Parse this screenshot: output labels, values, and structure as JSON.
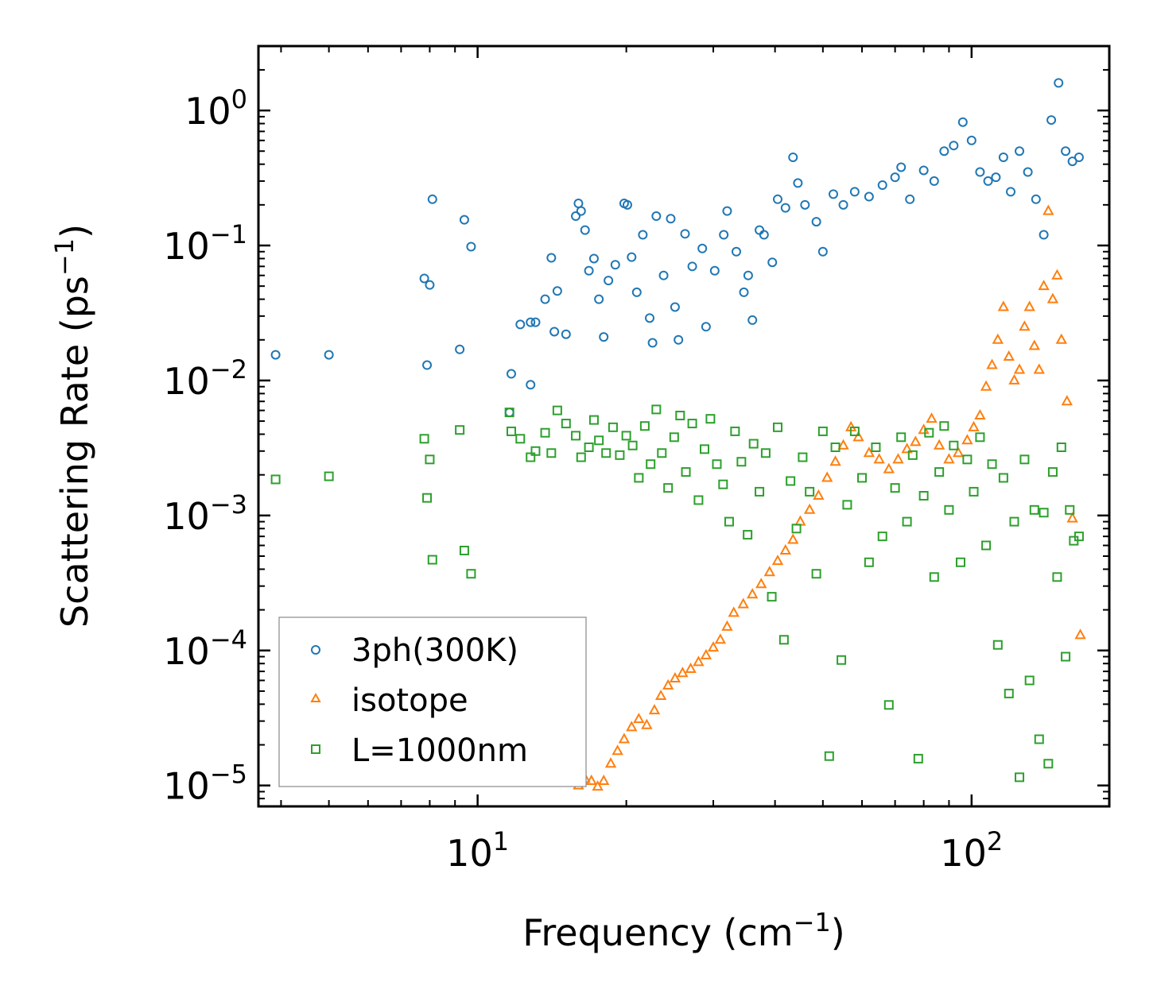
{
  "chart_data": {
    "type": "scatter",
    "title": "",
    "xlabel": "Frequency (cm",
    "xlabel_sup": "−1",
    "xlabel_end": ")",
    "ylabel": "Scattering Rate (ps",
    "ylabel_sup": "−1",
    "ylabel_end": ")",
    "xscale": "log",
    "yscale": "log",
    "xlim": [
      3.6,
      190
    ],
    "ylim": [
      7e-06,
      3
    ],
    "xticks": [
      {
        "value": 10,
        "base": "10",
        "exp": "1"
      },
      {
        "value": 100,
        "base": "10",
        "exp": "2"
      }
    ],
    "yticks": [
      {
        "value": 1,
        "base": "10",
        "exp": "0"
      },
      {
        "value": 0.1,
        "base": "10",
        "exp": "−1"
      },
      {
        "value": 0.01,
        "base": "10",
        "exp": "−2"
      },
      {
        "value": 0.001,
        "base": "10",
        "exp": "−3"
      },
      {
        "value": 0.0001,
        "base": "10",
        "exp": "−4"
      },
      {
        "value": 1e-05,
        "base": "10",
        "exp": "−5"
      }
    ],
    "legend_position": "lower-left",
    "series": [
      {
        "name": "3ph(300K)",
        "marker": "circle",
        "color": "#1f77b4",
        "points": [
          [
            3.9,
            0.0155
          ],
          [
            5.0,
            0.0155
          ],
          [
            7.8,
            0.057
          ],
          [
            7.9,
            0.013
          ],
          [
            8.0,
            0.051
          ],
          [
            8.1,
            0.22
          ],
          [
            9.2,
            0.017
          ],
          [
            9.4,
            0.155
          ],
          [
            9.7,
            0.098
          ],
          [
            11.6,
            0.0058
          ],
          [
            11.7,
            0.0112
          ],
          [
            12.2,
            0.026
          ],
          [
            12.8,
            0.0093
          ],
          [
            12.8,
            0.027
          ],
          [
            13.1,
            0.027
          ],
          [
            13.7,
            0.04
          ],
          [
            14.1,
            0.081
          ],
          [
            14.3,
            0.023
          ],
          [
            14.5,
            0.046
          ],
          [
            15.1,
            0.022
          ],
          [
            15.8,
            0.165
          ],
          [
            16.0,
            0.205
          ],
          [
            16.2,
            0.18
          ],
          [
            16.5,
            0.13
          ],
          [
            16.8,
            0.065
          ],
          [
            17.2,
            0.08
          ],
          [
            17.6,
            0.04
          ],
          [
            18.0,
            0.021
          ],
          [
            18.4,
            0.055
          ],
          [
            19.0,
            0.072
          ],
          [
            19.8,
            0.205
          ],
          [
            20.1,
            0.2
          ],
          [
            20.5,
            0.082
          ],
          [
            21.0,
            0.045
          ],
          [
            21.6,
            0.12
          ],
          [
            22.3,
            0.029
          ],
          [
            22.6,
            0.019
          ],
          [
            23.0,
            0.165
          ],
          [
            23.8,
            0.06
          ],
          [
            24.6,
            0.158
          ],
          [
            25.1,
            0.035
          ],
          [
            25.5,
            0.02
          ],
          [
            26.3,
            0.122
          ],
          [
            27.2,
            0.07
          ],
          [
            28.5,
            0.095
          ],
          [
            29.0,
            0.025
          ],
          [
            30.2,
            0.065
          ],
          [
            31.5,
            0.12
          ],
          [
            32.0,
            0.18
          ],
          [
            33.4,
            0.09
          ],
          [
            34.6,
            0.045
          ],
          [
            35.3,
            0.06
          ],
          [
            36.0,
            0.028
          ],
          [
            37.2,
            0.13
          ],
          [
            38.0,
            0.12
          ],
          [
            39.5,
            0.075
          ],
          [
            40.5,
            0.22
          ],
          [
            42.0,
            0.19
          ],
          [
            43.5,
            0.45
          ],
          [
            44.5,
            0.29
          ],
          [
            46.0,
            0.2
          ],
          [
            48.5,
            0.15
          ],
          [
            50.0,
            0.09
          ],
          [
            52.5,
            0.24
          ],
          [
            55.0,
            0.2
          ],
          [
            58.0,
            0.25
          ],
          [
            62.0,
            0.23
          ],
          [
            66.0,
            0.28
          ],
          [
            70.0,
            0.32
          ],
          [
            72.0,
            0.38
          ],
          [
            75.0,
            0.22
          ],
          [
            80.0,
            0.36
          ],
          [
            84.0,
            0.3
          ],
          [
            88.0,
            0.5
          ],
          [
            92.0,
            0.55
          ],
          [
            96.0,
            0.82
          ],
          [
            100.0,
            0.6
          ],
          [
            104.0,
            0.35
          ],
          [
            108.0,
            0.3
          ],
          [
            112.0,
            0.32
          ],
          [
            116.0,
            0.45
          ],
          [
            120.0,
            0.25
          ],
          [
            125.0,
            0.5
          ],
          [
            130.0,
            0.35
          ],
          [
            135.0,
            0.22
          ],
          [
            140.0,
            0.12
          ],
          [
            145.0,
            0.85
          ],
          [
            150.0,
            1.6
          ],
          [
            155.0,
            0.5
          ],
          [
            160.0,
            0.42
          ],
          [
            165.0,
            0.45
          ]
        ]
      },
      {
        "name": "isotope",
        "marker": "triangle",
        "color": "#ff7f0e",
        "points": [
          [
            16.0,
            1e-05
          ],
          [
            16.5,
            1.12e-05
          ],
          [
            17.0,
            1.08e-05
          ],
          [
            17.5,
            9.8e-06
          ],
          [
            18.0,
            1.08e-05
          ],
          [
            18.6,
            1.45e-05
          ],
          [
            19.2,
            1.8e-05
          ],
          [
            19.8,
            2.2e-05
          ],
          [
            20.5,
            2.7e-05
          ],
          [
            21.2,
            3.1e-05
          ],
          [
            22.0,
            2.8e-05
          ],
          [
            22.8,
            3.6e-05
          ],
          [
            23.5,
            4.6e-05
          ],
          [
            24.3,
            5.5e-05
          ],
          [
            25.1,
            6.2e-05
          ],
          [
            26.0,
            6.8e-05
          ],
          [
            27.0,
            7.3e-05
          ],
          [
            28.0,
            8.2e-05
          ],
          [
            29.0,
            9.2e-05
          ],
          [
            30.0,
            0.000105
          ],
          [
            31.0,
            0.00012
          ],
          [
            32.0,
            0.00015
          ],
          [
            33.0,
            0.00019
          ],
          [
            34.5,
            0.00022
          ],
          [
            36.0,
            0.00026
          ],
          [
            37.5,
            0.00031
          ],
          [
            39.0,
            0.00038
          ],
          [
            40.5,
            0.00046
          ],
          [
            42.0,
            0.00055
          ],
          [
            43.5,
            0.00066
          ],
          [
            45.0,
            0.0009
          ],
          [
            47.0,
            0.0011
          ],
          [
            49.0,
            0.0014
          ],
          [
            51.0,
            0.0019
          ],
          [
            53.0,
            0.0025
          ],
          [
            55.0,
            0.0033
          ],
          [
            57.0,
            0.0045
          ],
          [
            59.0,
            0.0038
          ],
          [
            62.0,
            0.0029
          ],
          [
            65.0,
            0.0026
          ],
          [
            68.0,
            0.0022
          ],
          [
            71.0,
            0.0026
          ],
          [
            74.0,
            0.0031
          ],
          [
            77.0,
            0.0035
          ],
          [
            80.0,
            0.0043
          ],
          [
            83.0,
            0.0052
          ],
          [
            86.0,
            0.0033
          ],
          [
            90.0,
            0.0026
          ],
          [
            94.0,
            0.0029
          ],
          [
            98.0,
            0.0036
          ],
          [
            101.0,
            0.0045
          ],
          [
            104.0,
            0.0055
          ],
          [
            107.0,
            0.009
          ],
          [
            110.0,
            0.013
          ],
          [
            113.0,
            0.02
          ],
          [
            116.0,
            0.035
          ],
          [
            119.0,
            0.015
          ],
          [
            122.0,
            0.01
          ],
          [
            125.0,
            0.012
          ],
          [
            128.0,
            0.025
          ],
          [
            131.0,
            0.035
          ],
          [
            134.0,
            0.018
          ],
          [
            137.0,
            0.012
          ],
          [
            140.0,
            0.05
          ],
          [
            143.0,
            0.18
          ],
          [
            146.0,
            0.04
          ],
          [
            149.0,
            0.06
          ],
          [
            152.0,
            0.02
          ],
          [
            156.0,
            0.007
          ],
          [
            160.0,
            0.00095
          ],
          [
            166.0,
            0.00013
          ]
        ]
      },
      {
        "name": "L=1000nm",
        "marker": "square",
        "color": "#2ca02c",
        "points": [
          [
            3.9,
            0.00185
          ],
          [
            5.0,
            0.00195
          ],
          [
            7.8,
            0.0037
          ],
          [
            7.9,
            0.00135
          ],
          [
            8.0,
            0.0026
          ],
          [
            8.1,
            0.00047
          ],
          [
            9.2,
            0.0043
          ],
          [
            9.4,
            0.00055
          ],
          [
            9.7,
            0.00037
          ],
          [
            11.6,
            0.0058
          ],
          [
            11.7,
            0.0042
          ],
          [
            12.2,
            0.0037
          ],
          [
            12.8,
            0.0027
          ],
          [
            13.1,
            0.003
          ],
          [
            13.7,
            0.0041
          ],
          [
            14.1,
            0.0029
          ],
          [
            14.5,
            0.006
          ],
          [
            15.1,
            0.0048
          ],
          [
            15.8,
            0.0039
          ],
          [
            16.2,
            0.0027
          ],
          [
            16.8,
            0.0032
          ],
          [
            17.2,
            0.0051
          ],
          [
            17.6,
            0.0036
          ],
          [
            18.2,
            0.0029
          ],
          [
            18.8,
            0.0045
          ],
          [
            19.4,
            0.0028
          ],
          [
            20.0,
            0.0039
          ],
          [
            20.6,
            0.0033
          ],
          [
            21.2,
            0.0019
          ],
          [
            21.8,
            0.0046
          ],
          [
            22.4,
            0.0024
          ],
          [
            23.0,
            0.0061
          ],
          [
            23.6,
            0.0029
          ],
          [
            24.3,
            0.0016
          ],
          [
            25.0,
            0.0038
          ],
          [
            25.7,
            0.0055
          ],
          [
            26.4,
            0.0021
          ],
          [
            27.2,
            0.0048
          ],
          [
            28.0,
            0.0013
          ],
          [
            28.8,
            0.0031
          ],
          [
            29.6,
            0.0052
          ],
          [
            30.5,
            0.0024
          ],
          [
            31.4,
            0.0017
          ],
          [
            32.3,
            0.0009
          ],
          [
            33.2,
            0.0042
          ],
          [
            34.2,
            0.0025
          ],
          [
            35.2,
            0.00072
          ],
          [
            36.2,
            0.0034
          ],
          [
            37.2,
            0.0015
          ],
          [
            38.3,
            0.0029
          ],
          [
            39.4,
            0.00025
          ],
          [
            40.5,
            0.0045
          ],
          [
            41.7,
            0.00012
          ],
          [
            43.0,
            0.0018
          ],
          [
            44.2,
            0.0008
          ],
          [
            45.5,
            0.0027
          ],
          [
            47.0,
            0.0015
          ],
          [
            48.5,
            0.00037
          ],
          [
            50.0,
            0.0042
          ],
          [
            51.5,
            1.65e-05
          ],
          [
            53.0,
            0.0032
          ],
          [
            54.5,
            8.5e-05
          ],
          [
            56.0,
            0.0012
          ],
          [
            58.0,
            0.0042
          ],
          [
            60.0,
            0.0019
          ],
          [
            62.0,
            0.00045
          ],
          [
            64.0,
            0.0032
          ],
          [
            66.0,
            0.0007
          ],
          [
            68.0,
            3.95e-05
          ],
          [
            70.0,
            0.0016
          ],
          [
            72.0,
            0.0038
          ],
          [
            74.0,
            0.0009
          ],
          [
            76.0,
            0.0028
          ],
          [
            78.0,
            1.58e-05
          ],
          [
            80.0,
            0.0014
          ],
          [
            82.0,
            0.0041
          ],
          [
            84.0,
            0.00035
          ],
          [
            86.0,
            0.0021
          ],
          [
            88.0,
            0.0046
          ],
          [
            90.0,
            0.0011
          ],
          [
            92.0,
            0.0033
          ],
          [
            95.0,
            0.00045
          ],
          [
            98.0,
            0.0026
          ],
          [
            101.0,
            0.0015
          ],
          [
            104.0,
            0.0038
          ],
          [
            107.0,
            0.0006
          ],
          [
            110.0,
            0.0024
          ],
          [
            113.0,
            0.00011
          ],
          [
            116.0,
            0.0019
          ],
          [
            119.0,
            4.8e-05
          ],
          [
            122.0,
            0.0009
          ],
          [
            125.0,
            1.15e-05
          ],
          [
            128.0,
            0.0026
          ],
          [
            131.0,
            6e-05
          ],
          [
            134.0,
            0.0011
          ],
          [
            137.0,
            2.2e-05
          ],
          [
            140.0,
            0.00105
          ],
          [
            143.0,
            1.45e-05
          ],
          [
            146.0,
            0.0021
          ],
          [
            149.0,
            0.00035
          ],
          [
            152.0,
            0.0032
          ],
          [
            155.0,
            9e-05
          ],
          [
            158.0,
            0.0011
          ],
          [
            161.0,
            0.00065
          ],
          [
            165.0,
            0.0007
          ]
        ]
      }
    ]
  }
}
